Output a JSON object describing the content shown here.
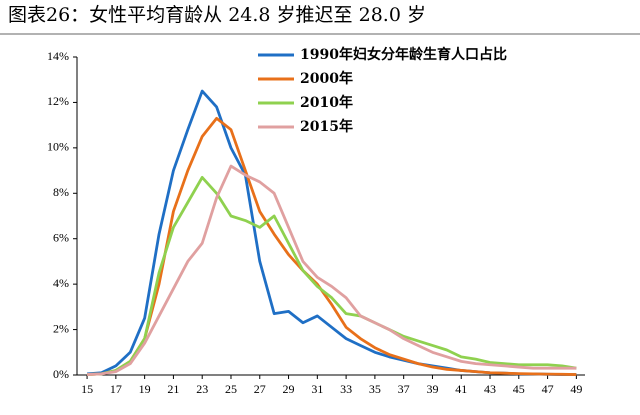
{
  "chart_data": {
    "type": "line",
    "title": "图表26：女性平均育龄从 24.8 岁推迟至 28.0 岁",
    "x": [
      15,
      16,
      17,
      18,
      19,
      20,
      21,
      22,
      23,
      24,
      25,
      26,
      27,
      28,
      29,
      30,
      31,
      32,
      33,
      34,
      35,
      36,
      37,
      38,
      39,
      40,
      41,
      42,
      43,
      44,
      45,
      46,
      47,
      48,
      49
    ],
    "xlim": [
      14.3,
      49.6
    ],
    "xticks": [
      15,
      17,
      19,
      21,
      23,
      25,
      27,
      29,
      31,
      33,
      35,
      37,
      39,
      41,
      43,
      45,
      47,
      49
    ],
    "ylim": [
      0,
      14
    ],
    "yticks": [
      {
        "value": 0,
        "label": "0%"
      },
      {
        "value": 2,
        "label": "2%"
      },
      {
        "value": 4,
        "label": "4%"
      },
      {
        "value": 6,
        "label": "6%"
      },
      {
        "value": 8,
        "label": "8%"
      },
      {
        "value": 10,
        "label": "10%"
      },
      {
        "value": 12,
        "label": "12%"
      },
      {
        "value": 14,
        "label": "14%"
      }
    ],
    "legend": "upper right",
    "series": [
      {
        "name": "1990年妇女分年龄生育人口占比",
        "color": "#1f6fc5",
        "values": [
          0.05,
          0.1,
          0.4,
          1.0,
          2.5,
          6.2,
          9.0,
          10.8,
          12.5,
          11.8,
          10.0,
          8.8,
          5.0,
          2.7,
          2.8,
          2.3,
          2.6,
          2.1,
          1.6,
          1.3,
          1.0,
          0.8,
          0.65,
          0.5,
          0.4,
          0.3,
          0.2,
          0.15,
          0.1,
          0.08,
          0.05,
          0.05,
          0.03,
          0.02,
          0.02
        ]
      },
      {
        "name": "2000年",
        "color": "#e8701a",
        "values": [
          0.02,
          0.05,
          0.2,
          0.6,
          1.6,
          4.0,
          7.2,
          9.0,
          10.5,
          11.3,
          10.8,
          9.0,
          7.2,
          6.2,
          5.3,
          4.6,
          4.0,
          3.1,
          2.1,
          1.6,
          1.2,
          0.9,
          0.7,
          0.5,
          0.35,
          0.25,
          0.2,
          0.15,
          0.1,
          0.08,
          0.06,
          0.05,
          0.04,
          0.03,
          0.02
        ]
      },
      {
        "name": "2010年",
        "color": "#8fd14f",
        "values": [
          0.02,
          0.05,
          0.2,
          0.6,
          1.6,
          4.5,
          6.5,
          7.6,
          8.7,
          8.0,
          7.0,
          6.8,
          6.5,
          7.0,
          5.8,
          4.6,
          3.9,
          3.4,
          2.7,
          2.6,
          2.3,
          2.0,
          1.7,
          1.5,
          1.3,
          1.1,
          0.8,
          0.7,
          0.55,
          0.5,
          0.45,
          0.45,
          0.45,
          0.4,
          0.3
        ]
      },
      {
        "name": "2015年",
        "color": "#e0a0a0",
        "values": [
          0.02,
          0.05,
          0.15,
          0.5,
          1.4,
          2.6,
          3.8,
          5.0,
          5.8,
          7.8,
          9.2,
          8.8,
          8.5,
          8.0,
          6.5,
          5.0,
          4.3,
          3.9,
          3.4,
          2.6,
          2.3,
          2.0,
          1.6,
          1.3,
          1.0,
          0.8,
          0.6,
          0.5,
          0.45,
          0.4,
          0.35,
          0.3,
          0.3,
          0.3,
          0.3
        ]
      }
    ]
  }
}
